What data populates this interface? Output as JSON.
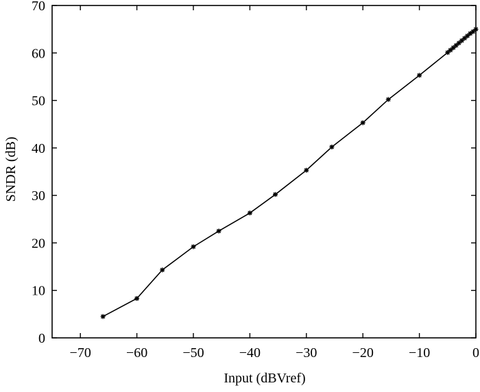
{
  "chart_data": {
    "type": "line",
    "title": "",
    "xlabel": "Input (dBVref)",
    "ylabel": "SNDR (dB)",
    "xlim": [
      -75,
      0
    ],
    "ylim": [
      0,
      70
    ],
    "xticks": [
      -70,
      -60,
      -50,
      -40,
      -30,
      -20,
      -10,
      0
    ],
    "yticks": [
      0,
      10,
      20,
      30,
      40,
      50,
      60,
      70
    ],
    "grid": false,
    "series": [
      {
        "marker": "asterisk",
        "color": "#000000",
        "x": [
          -66,
          -60,
          -55.5,
          -50,
          -45.5,
          -40,
          -35.5,
          -30,
          -25.5,
          -20,
          -15.5,
          -10,
          -5,
          -4.5,
          -4,
          -3.5,
          -3,
          -2.5,
          -2,
          -1.5,
          -1,
          -0.5,
          0
        ],
        "y": [
          4.5,
          8.3,
          14.3,
          19.2,
          22.5,
          26.3,
          30.2,
          35.3,
          40.2,
          45.3,
          50.2,
          55.3,
          60.1,
          60.6,
          61.1,
          61.6,
          62.1,
          62.6,
          63.1,
          63.6,
          64.1,
          64.5,
          65
        ]
      }
    ]
  }
}
